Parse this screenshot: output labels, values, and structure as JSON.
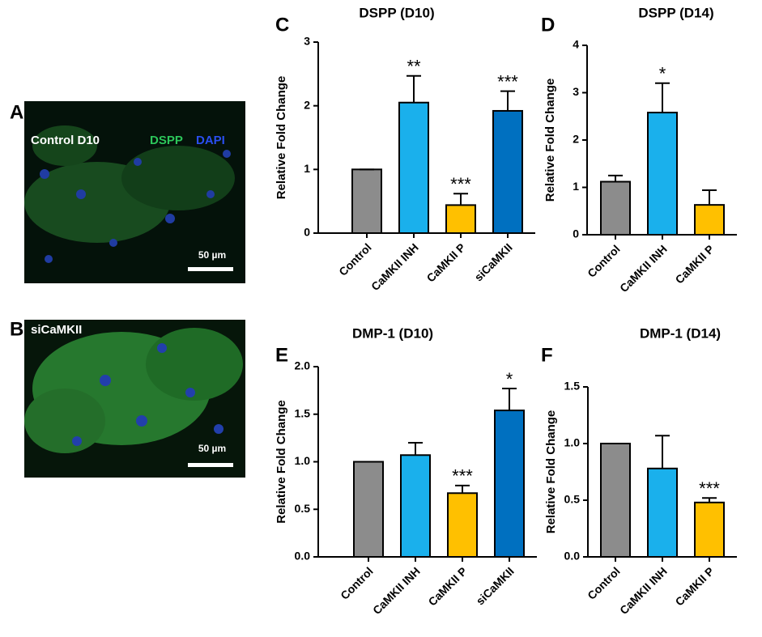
{
  "images": [
    {
      "panel": "A",
      "caption": "Control D10",
      "stain1": "DSPP",
      "stain2": "DAPI",
      "scale": "50 µm"
    },
    {
      "panel": "B",
      "caption": "siCaMKII",
      "scale": "50 µm"
    }
  ],
  "chart_data": [
    {
      "type": "bar",
      "panel": "C",
      "title": "DSPP (D10)",
      "y_label": "Relative Fold Change",
      "categories": [
        "Control",
        "CaMKII INH",
        "CaMKII P",
        "siCaMKII"
      ],
      "values": [
        1.0,
        2.05,
        0.44,
        1.92
      ],
      "errors": [
        0,
        0.42,
        0.18,
        0.31
      ],
      "colors": [
        "#8c8c8c",
        "#1ab0ec",
        "#ffc000",
        "#0070c0"
      ],
      "annotations": [
        {
          "index": 1,
          "text": "**"
        },
        {
          "index": 2,
          "text": "***"
        },
        {
          "index": 3,
          "text": "***"
        }
      ],
      "ylim": [
        0,
        3
      ],
      "yticks": [
        0,
        1,
        2,
        3
      ]
    },
    {
      "type": "bar",
      "panel": "D",
      "title": "DSPP (D14)",
      "y_label": "Relative Fold Change",
      "categories": [
        "Control",
        "CaMKII INH",
        "CaMKII P"
      ],
      "values": [
        1.12,
        2.58,
        0.63
      ],
      "errors": [
        0.13,
        0.62,
        0.31
      ],
      "colors": [
        "#8c8c8c",
        "#1ab0ec",
        "#ffc000"
      ],
      "annotations": [
        {
          "index": 1,
          "text": "*"
        }
      ],
      "ylim": [
        0,
        4
      ],
      "yticks": [
        0,
        1,
        2,
        3,
        4
      ]
    },
    {
      "type": "bar",
      "panel": "E",
      "title": "DMP-1 (D10)",
      "y_label": "Relative Fold Change",
      "categories": [
        "Control",
        "CaMKII INH",
        "CaMKII P",
        "siCaMKII"
      ],
      "values": [
        1.0,
        1.07,
        0.67,
        1.54
      ],
      "errors": [
        0,
        0.13,
        0.08,
        0.23
      ],
      "colors": [
        "#8c8c8c",
        "#1ab0ec",
        "#ffc000",
        "#0070c0"
      ],
      "annotations": [
        {
          "index": 2,
          "text": "***"
        },
        {
          "index": 3,
          "text": "*"
        }
      ],
      "ylim": [
        0,
        2
      ],
      "yticks": [
        {
          "value": 0,
          "label": "0.0"
        },
        0.5,
        {
          "value": 1,
          "label": "1.0"
        },
        1.5,
        {
          "value": 2,
          "label": "2.0"
        }
      ]
    },
    {
      "type": "bar",
      "panel": "F",
      "title": "DMP-1 (D14)",
      "y_label": "Relative Fold Change",
      "categories": [
        "Control",
        "CaMKII INH",
        "CaMKII P"
      ],
      "values": [
        1.0,
        0.78,
        0.48
      ],
      "errors": [
        0,
        0.29,
        0.04
      ],
      "colors": [
        "#8c8c8c",
        "#1ab0ec",
        "#ffc000"
      ],
      "annotations": [
        {
          "index": 2,
          "text": "***"
        }
      ],
      "ylim": [
        0,
        1.5
      ],
      "yticks": [
        {
          "value": 0,
          "label": "0.0"
        },
        0.5,
        {
          "value": 1,
          "label": "1.0"
        },
        1.5
      ]
    }
  ]
}
